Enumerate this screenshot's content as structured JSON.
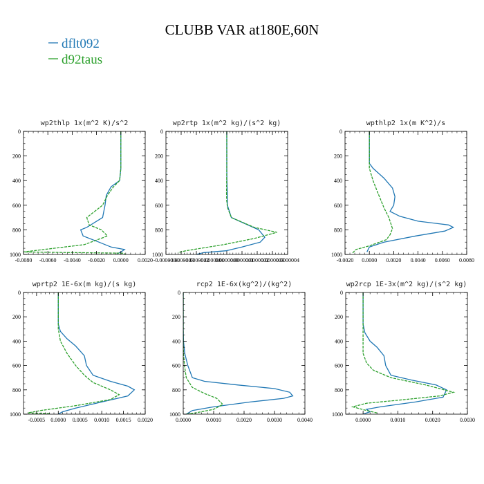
{
  "title": "CLUBB VAR at180E,60N",
  "legend": [
    {
      "label": "dflt092",
      "color": "#1f77b4"
    },
    {
      "label": "d92taus",
      "color": "#2ca02c"
    }
  ],
  "chart_data": [
    {
      "type": "line",
      "title": "wp2thlp   1x(m^2 K)/s^2",
      "xlim": [
        -0.008,
        0.002
      ],
      "ylim": [
        1000,
        0
      ],
      "xticks": [
        -0.008,
        -0.006,
        -0.004,
        -0.002,
        0.0,
        0.002
      ],
      "xticklabels": [
        "-0.0080",
        "-0.0060",
        "-0.0040",
        "-0.0020",
        "0.0000",
        "0.0020"
      ],
      "yticks": [
        0,
        200,
        400,
        600,
        800,
        1000
      ],
      "yticklabels": [
        "0",
        "200",
        "400",
        "600",
        "800",
        "1000"
      ],
      "series": [
        {
          "name": "dflt092",
          "x": [
            0.0,
            0.0,
            -0.0001,
            -0.0008,
            -0.0012,
            -0.0013,
            -0.0015,
            -0.0028,
            -0.0033,
            -0.0031,
            -0.0018,
            -0.0008,
            0.0003,
            0.0,
            -0.0003
          ],
          "y": [
            0,
            300,
            400,
            450,
            520,
            600,
            700,
            780,
            800,
            850,
            900,
            940,
            960,
            980,
            995
          ]
        },
        {
          "name": "d92taus",
          "x": [
            0.0,
            0.0,
            -0.0001,
            -0.0006,
            -0.0011,
            -0.0015,
            -0.0028,
            -0.0026,
            -0.0016,
            -0.0011,
            -0.003,
            -0.008,
            0.0002,
            0.0004
          ],
          "y": [
            0,
            300,
            400,
            450,
            520,
            600,
            700,
            760,
            800,
            850,
            920,
            980,
            990,
            1000
          ]
        }
      ]
    },
    {
      "type": "line",
      "title": "wp2rtp   1x(m^2 kg)/(s^2 kg)",
      "xlim": [
        -4e-07,
        4e-07
      ],
      "ylim": [
        1000,
        0
      ],
      "xticks": [
        -4e-07,
        -3e-07,
        -2e-07,
        -1e-07,
        0.0,
        1e-07,
        2e-07,
        3e-07,
        4e-07
      ],
      "xticklabels": [
        "-0.0000004",
        "-0.0000003",
        "-0.0000002",
        "-0.0000001",
        "0.0000000",
        "0.0000001",
        "0.0000002",
        "0.0000003",
        "0.0000004"
      ],
      "yticks": [
        0,
        200,
        400,
        600,
        800,
        1000
      ],
      "yticklabels": [
        "0",
        "200",
        "400",
        "600",
        "800",
        "1000"
      ],
      "series": [
        {
          "name": "dflt092",
          "x": [
            0.0,
            0.0,
            1e-09,
            3e-09,
            4e-09,
            3e-08,
            1.2e-07,
            2.1e-07,
            2.5e-07,
            2.2e-07,
            1e-07,
            -5e-09,
            -1.5e-07,
            -2e-07
          ],
          "y": [
            0,
            300,
            400,
            500,
            600,
            700,
            750,
            800,
            860,
            900,
            940,
            970,
            985,
            1000
          ]
        },
        {
          "name": "d92taus",
          "x": [
            0.0,
            0.0,
            -1e-09,
            -2e-09,
            -1e-09,
            5e-09,
            3e-08,
            1.8e-07,
            3.3e-07,
            1.8e-07,
            -2e-08,
            -2.7e-07,
            -3.2e-07
          ],
          "y": [
            0,
            300,
            400,
            500,
            560,
            620,
            700,
            780,
            820,
            870,
            920,
            970,
            985
          ]
        }
      ]
    },
    {
      "type": "line",
      "title": "wpthlp2   1x(m K^2)/s",
      "xlim": [
        -0.002,
        0.008
      ],
      "ylim": [
        1000,
        0
      ],
      "xticks": [
        -0.002,
        0.0,
        0.002,
        0.004,
        0.006,
        0.008
      ],
      "xticklabels": [
        "-0.0020",
        "0.0000",
        "0.0020",
        "0.0040",
        "0.0060",
        "0.0080"
      ],
      "yticks": [
        0,
        200,
        400,
        600,
        800,
        1000
      ],
      "yticklabels": [
        "0",
        "200",
        "400",
        "600",
        "800",
        "1000"
      ],
      "series": [
        {
          "name": "dflt092",
          "x": [
            0.0,
            0.0,
            0.0003,
            0.0012,
            0.0019,
            0.0021,
            0.002,
            0.0017,
            0.0025,
            0.004,
            0.0065,
            0.0069,
            0.0062,
            0.0038,
            0.0012,
            0.0,
            -0.0002
          ],
          "y": [
            0,
            260,
            300,
            380,
            460,
            530,
            600,
            650,
            690,
            730,
            760,
            780,
            810,
            850,
            900,
            940,
            980
          ]
        },
        {
          "name": "d92taus",
          "x": [
            0.0,
            0.0,
            0.0003,
            0.0007,
            0.0012,
            0.0016,
            0.0018,
            0.0019,
            0.0017,
            0.0014,
            0.0,
            -0.0011,
            -0.0014
          ],
          "y": [
            0,
            300,
            400,
            500,
            620,
            700,
            760,
            790,
            840,
            880,
            930,
            960,
            990
          ]
        }
      ]
    },
    {
      "type": "line",
      "title": "wprtp2   1E-6x(m kg)/(s kg)",
      "xlim": [
        -0.0008,
        0.002
      ],
      "ylim": [
        1000,
        0
      ],
      "xticks": [
        -0.0005,
        0.0,
        0.0005,
        0.001,
        0.0015,
        0.002
      ],
      "xticklabels": [
        "-0.0005",
        "0.0000",
        "0.0005",
        "0.0010",
        "0.0015",
        "0.0020"
      ],
      "yticks": [
        0,
        200,
        400,
        600,
        800,
        1000
      ],
      "yticklabels": [
        "0",
        "200",
        "400",
        "600",
        "800",
        "1000"
      ],
      "series": [
        {
          "name": "dflt092",
          "x": [
            0.0,
            0.0,
            5e-05,
            0.0002,
            0.0004,
            0.0006,
            0.00065,
            0.0008,
            0.0012,
            0.0016,
            0.00175,
            0.0016,
            0.001,
            0.0004,
            0.0001,
            0.0
          ],
          "y": [
            0,
            260,
            320,
            380,
            440,
            520,
            600,
            680,
            730,
            770,
            800,
            850,
            900,
            950,
            980,
            1000
          ]
        },
        {
          "name": "d92taus",
          "x": [
            0.0,
            0.0,
            5e-05,
            0.0002,
            0.0004,
            0.0006,
            0.0008,
            0.0012,
            0.0014,
            0.0012,
            0.0004,
            -0.0004,
            -0.0007,
            -0.0002
          ],
          "y": [
            0,
            300,
            400,
            500,
            600,
            680,
            740,
            800,
            840,
            880,
            930,
            970,
            990,
            995
          ]
        }
      ]
    },
    {
      "type": "line",
      "title": "rcp2   1E-6x(kg^2)/(kg^2)",
      "xlim": [
        0.0,
        0.004
      ],
      "ylim": [
        1000,
        0
      ],
      "xticks": [
        0.0,
        0.001,
        0.002,
        0.003,
        0.004
      ],
      "xticklabels": [
        "0.0000",
        "0.0010",
        "0.0020",
        "0.0030",
        "0.0040"
      ],
      "yticks": [
        0,
        200,
        400,
        600,
        800,
        1000
      ],
      "yticklabels": [
        "0",
        "200",
        "400",
        "600",
        "800",
        "1000"
      ],
      "series": [
        {
          "name": "dflt092",
          "x": [
            0.0,
            0.0,
            1e-05,
            5e-05,
            0.00015,
            0.0003,
            0.0007,
            0.0018,
            0.003,
            0.0035,
            0.0036,
            0.0033,
            0.0022,
            0.001,
            0.0003,
            0.0001
          ],
          "y": [
            0,
            300,
            400,
            500,
            600,
            700,
            730,
            760,
            790,
            820,
            850,
            870,
            900,
            940,
            970,
            1000
          ]
        },
        {
          "name": "d92taus",
          "x": [
            0.0,
            0.0,
            1e-05,
            4e-05,
            0.0001,
            0.0003,
            0.0007,
            0.0011,
            0.0013,
            0.001,
            0.0004,
            0.0001
          ],
          "y": [
            0,
            400,
            500,
            600,
            700,
            780,
            830,
            870,
            920,
            960,
            990,
            1000
          ]
        }
      ]
    },
    {
      "type": "line",
      "title": "wp2rcp   1E-3x(m^2 kg)/(s^2 kg)",
      "xlim": [
        -0.0005,
        0.003
      ],
      "ylim": [
        1000,
        0
      ],
      "xticks": [
        0.0,
        0.001,
        0.002,
        0.003
      ],
      "xticklabels": [
        "0.0000",
        "0.0010",
        "0.0020",
        "0.0030"
      ],
      "yticks": [
        0,
        200,
        400,
        600,
        800,
        1000
      ],
      "yticklabels": [
        "0",
        "200",
        "400",
        "600",
        "800",
        "1000"
      ],
      "series": [
        {
          "name": "dflt092",
          "x": [
            0.0,
            0.0,
            5e-05,
            0.0002,
            0.0004,
            0.0006,
            0.00065,
            0.0008,
            0.0014,
            0.0021,
            0.0024,
            0.0023,
            0.0015,
            0.0005,
            0.0001,
            0.0002,
            0.0
          ],
          "y": [
            0,
            260,
            330,
            400,
            450,
            520,
            600,
            680,
            720,
            760,
            800,
            860,
            900,
            940,
            960,
            980,
            1000
          ]
        },
        {
          "name": "d92taus",
          "x": [
            0.0,
            0.0,
            0.0,
            0.0001,
            0.0003,
            0.0008,
            0.0018,
            0.0026,
            0.0022,
            0.0012,
            0.0001,
            -0.0003,
            0.0001,
            0.0004
          ],
          "y": [
            0,
            400,
            500,
            580,
            640,
            700,
            760,
            820,
            850,
            880,
            910,
            940,
            970,
            990
          ]
        }
      ]
    }
  ]
}
